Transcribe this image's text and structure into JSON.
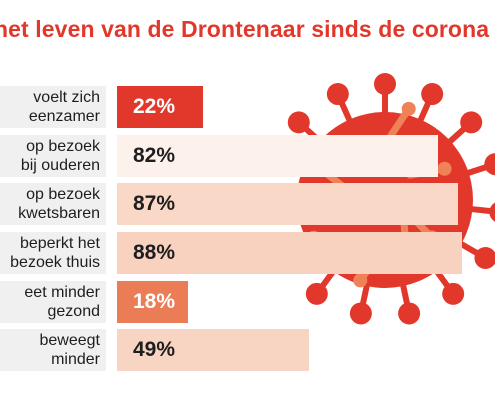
{
  "title": "het leven van de Drontenaar sinds de corona",
  "colors": {
    "title": "#e2382c",
    "virus_body": "#e2382c",
    "virus_spikes": "#f08258",
    "label_bg": "#f0f0f0"
  },
  "icons": [
    "coronavirus-illustration"
  ],
  "chart_data": {
    "type": "bar",
    "orientation": "horizontal",
    "unit": "%",
    "xlim": [
      0,
      100
    ],
    "categories": [
      "voelt zich\neenzamer",
      "op bezoek\nbij ouderen",
      "op bezoek\nkwetsbaren",
      "beperkt het\nbezoek thuis",
      "eet minder\ngezond",
      "beweegt\nminder"
    ],
    "values": [
      22,
      82,
      87,
      88,
      18,
      49
    ],
    "value_labels": [
      "22%",
      "82%",
      "87%",
      "88%",
      "18%",
      "49%"
    ],
    "bar_colors": [
      "#e2382c",
      "#fdf1ec",
      "#f9d8c8",
      "#f8d2be",
      "#ea7d55",
      "#f8d5c2"
    ],
    "value_label_colors": [
      "#ffffff",
      "#1e1e1e",
      "#1e1e1e",
      "#1e1e1e",
      "#ffffff",
      "#1e1e1e"
    ]
  }
}
